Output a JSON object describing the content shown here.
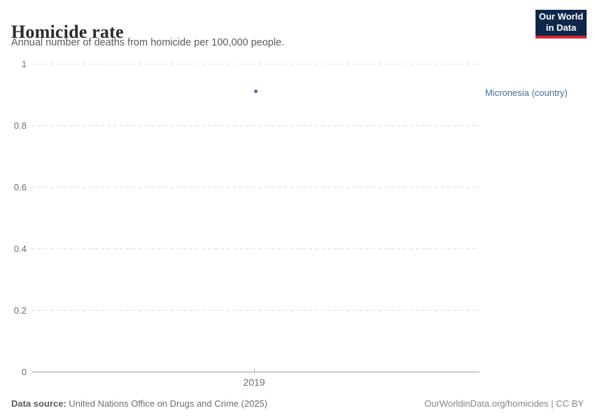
{
  "header": {
    "title": "Homicide rate",
    "subtitle": "Annual number of deaths from homicide per 100,000 people.",
    "logo": {
      "line1": "Our World",
      "line2": "in Data",
      "bg_color": "#0d264a",
      "underline_color": "#d22832"
    }
  },
  "chart_data": {
    "type": "scatter",
    "title": "Homicide rate",
    "subtitle": "Annual number of deaths from homicide per 100,000 people.",
    "xlabel": "",
    "ylabel": "",
    "ylim": [
      0,
      1
    ],
    "yticks": [
      0,
      0.2,
      0.4,
      0.6,
      0.8,
      1
    ],
    "xticks": [
      "2019"
    ],
    "grid": "dashed-horizontal",
    "legend_position": "right-of-point",
    "series": [
      {
        "name": "Micronesia (country)",
        "color": "#4c6a9c",
        "points": [
          {
            "x": 2019,
            "y": 0.91
          }
        ]
      }
    ]
  },
  "footer": {
    "source_label": "Data source:",
    "source_value": " United Nations Office on Drugs and Crime (2025)",
    "right_text": "OurWorldinData.org/homicides | CC BY"
  }
}
